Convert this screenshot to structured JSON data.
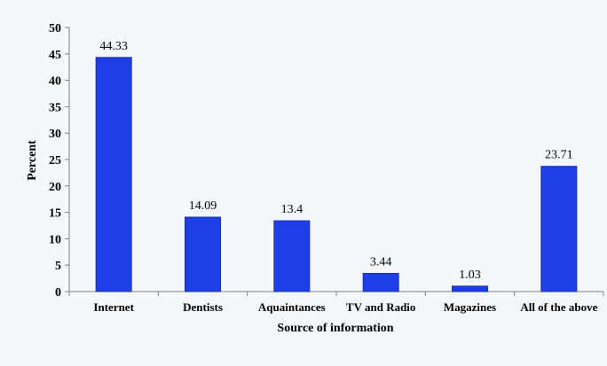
{
  "chart_data": {
    "type": "bar",
    "categories": [
      "Internet",
      "Dentists",
      "Aquaintances",
      "TV and Radio",
      "Magazines",
      "All of the above"
    ],
    "values": [
      44.33,
      14.09,
      13.4,
      3.44,
      1.03,
      23.71
    ],
    "data_labels": [
      "44.33",
      "14.09",
      "13.4",
      "3.44",
      "1.03",
      "23.71"
    ],
    "xlabel": "Source of information",
    "ylabel": "Percent",
    "ylim": [
      0,
      50
    ],
    "yticks": [
      0,
      5,
      10,
      15,
      20,
      25,
      30,
      35,
      40,
      45,
      50
    ],
    "grid": false,
    "legend": "none",
    "colors": {
      "bar": "#1f3fe6",
      "bar_edge": "#1a2fb0",
      "axis": "#808080",
      "background": "#f4f8fa"
    }
  }
}
